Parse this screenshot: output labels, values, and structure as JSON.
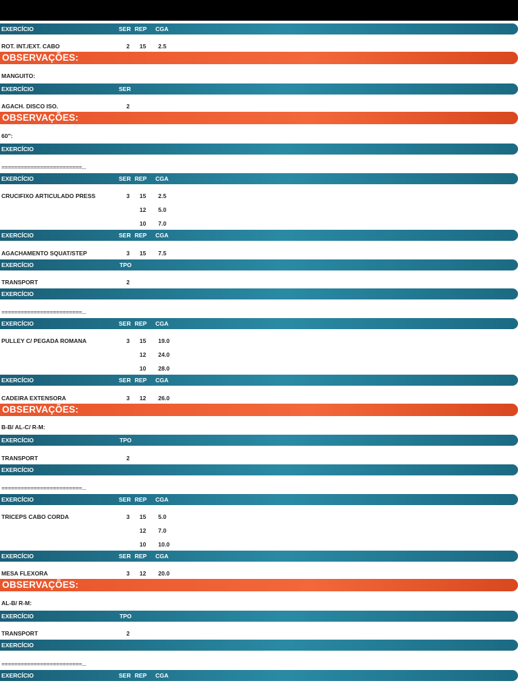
{
  "labels": {
    "exercicio": "EXERCÍCIO",
    "ser": "SER",
    "rep": "REP",
    "cga": "CGA",
    "tpo": "TPO",
    "observacoes": "OBSERVAÇÕES:",
    "separator": "=========================..."
  },
  "rows": [
    {
      "kind": "header",
      "cols": [
        "ser",
        "rep",
        "cga"
      ]
    },
    {
      "kind": "data",
      "name": "ROT. INT./EXT. CABO",
      "ser": "2",
      "rep": "15",
      "cga": "2.5"
    },
    {
      "kind": "obs"
    },
    {
      "kind": "note",
      "text": "MANGUITO:"
    },
    {
      "kind": "header",
      "cols": [
        "ser"
      ]
    },
    {
      "kind": "data",
      "name": "AGACH. DISCO ISO.",
      "ser": "2",
      "rep": "",
      "cga": ""
    },
    {
      "kind": "obs"
    },
    {
      "kind": "note",
      "text": "60\":"
    },
    {
      "kind": "header",
      "cols": []
    },
    {
      "kind": "sep"
    },
    {
      "kind": "header",
      "cols": [
        "ser",
        "rep",
        "cga"
      ]
    },
    {
      "kind": "data",
      "name": "CRUCIFIXO ARTICULADO PRESS",
      "ser": "3",
      "rep": "15",
      "cga": "2.5"
    },
    {
      "kind": "data",
      "name": "",
      "ser": "",
      "rep": "12",
      "cga": "5.0"
    },
    {
      "kind": "data",
      "name": "",
      "ser": "",
      "rep": "10",
      "cga": "7.0"
    },
    {
      "kind": "header",
      "cols": [
        "ser",
        "rep",
        "cga"
      ]
    },
    {
      "kind": "data",
      "name": "AGACHAMENTO SQUAT/STEP",
      "ser": "3",
      "rep": "15",
      "cga": "7.5"
    },
    {
      "kind": "header",
      "cols": [
        "tpo"
      ]
    },
    {
      "kind": "data",
      "name": "TRANSPORT",
      "ser": "2",
      "rep": "",
      "cga": ""
    },
    {
      "kind": "header",
      "cols": []
    },
    {
      "kind": "sep"
    },
    {
      "kind": "header",
      "cols": [
        "ser",
        "rep",
        "cga"
      ]
    },
    {
      "kind": "data",
      "name": "PULLEY C/ PEGADA ROMANA",
      "ser": "3",
      "rep": "15",
      "cga": "19.0"
    },
    {
      "kind": "data",
      "name": "",
      "ser": "",
      "rep": "12",
      "cga": "24.0"
    },
    {
      "kind": "data",
      "name": "",
      "ser": "",
      "rep": "10",
      "cga": "28.0"
    },
    {
      "kind": "header",
      "cols": [
        "ser",
        "rep",
        "cga"
      ]
    },
    {
      "kind": "data",
      "name": "CADEIRA EXTENSORA",
      "ser": "3",
      "rep": "12",
      "cga": "26.0"
    },
    {
      "kind": "obs"
    },
    {
      "kind": "note",
      "text": "B-B/ AL-C/ R-M:"
    },
    {
      "kind": "header",
      "cols": [
        "tpo"
      ]
    },
    {
      "kind": "data",
      "name": "TRANSPORT",
      "ser": "2",
      "rep": "",
      "cga": ""
    },
    {
      "kind": "header",
      "cols": []
    },
    {
      "kind": "sep"
    },
    {
      "kind": "header",
      "cols": [
        "ser",
        "rep",
        "cga"
      ]
    },
    {
      "kind": "data",
      "name": "TRICEPS CABO CORDA",
      "ser": "3",
      "rep": "15",
      "cga": "5.0"
    },
    {
      "kind": "data",
      "name": "",
      "ser": "",
      "rep": "12",
      "cga": "7.0"
    },
    {
      "kind": "data",
      "name": "",
      "ser": "",
      "rep": "10",
      "cga": "10.0"
    },
    {
      "kind": "header",
      "cols": [
        "ser",
        "rep",
        "cga"
      ]
    },
    {
      "kind": "data",
      "name": "MESA FLEXORA",
      "ser": "3",
      "rep": "12",
      "cga": "20.0"
    },
    {
      "kind": "obs"
    },
    {
      "kind": "note",
      "text": "AL-B/ R-M:"
    },
    {
      "kind": "header",
      "cols": [
        "tpo"
      ]
    },
    {
      "kind": "data",
      "name": "TRANSPORT",
      "ser": "2",
      "rep": "",
      "cga": ""
    },
    {
      "kind": "header",
      "cols": []
    },
    {
      "kind": "sep"
    },
    {
      "kind": "header",
      "cols": [
        "ser",
        "rep",
        "cga"
      ]
    }
  ],
  "colors": {
    "header_bar": "#2a8aa4",
    "observacoes_bar": "#f2683a",
    "status_bar": "#000000"
  }
}
